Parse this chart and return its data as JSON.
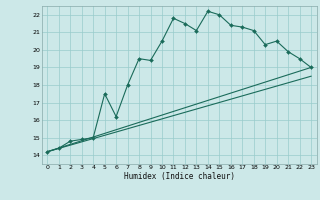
{
  "xlabel": "Humidex (Indice chaleur)",
  "bg_color": "#cce8e8",
  "grid_color": "#99cccc",
  "line_color": "#1a6b5a",
  "xlim": [
    -0.5,
    23.5
  ],
  "ylim": [
    13.5,
    22.5
  ],
  "xticks": [
    0,
    1,
    2,
    3,
    4,
    5,
    6,
    7,
    8,
    9,
    10,
    11,
    12,
    13,
    14,
    15,
    16,
    17,
    18,
    19,
    20,
    21,
    22,
    23
  ],
  "yticks": [
    14,
    15,
    16,
    17,
    18,
    19,
    20,
    21,
    22
  ],
  "main_y": [
    14.2,
    14.4,
    14.8,
    14.9,
    15.0,
    17.5,
    16.2,
    18.0,
    19.5,
    19.4,
    20.5,
    21.8,
    21.5,
    21.1,
    22.2,
    22.0,
    21.4,
    21.3,
    21.1,
    20.3,
    20.5,
    19.9,
    19.5,
    19.0
  ],
  "line1_end_y": 19.0,
  "line2_end_y": 18.5,
  "line_start_y": 14.2
}
